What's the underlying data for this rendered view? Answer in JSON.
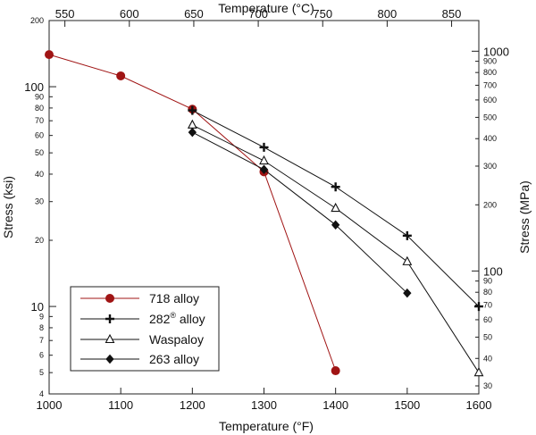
{
  "chart_data": {
    "type": "line",
    "y_scale": "log",
    "axes": {
      "bottom": {
        "label": "Temperature (°F)",
        "range": [
          1000,
          1600
        ],
        "ticks": [
          1000,
          1100,
          1200,
          1300,
          1400,
          1500,
          1600
        ]
      },
      "top": {
        "label": "Temperature (°C)",
        "ticks": [
          550,
          600,
          650,
          700,
          750,
          800,
          850
        ]
      },
      "left": {
        "label": "Stress (ksi)",
        "range": [
          4,
          200
        ],
        "major_ticks": [
          "10",
          "100"
        ],
        "minor_ticks": [
          "4",
          "5",
          "6",
          "7",
          "8",
          "9",
          "20",
          "30",
          "40",
          "50",
          "60",
          "70",
          "80",
          "90",
          "200"
        ]
      },
      "right": {
        "label": "Stress (MPa)",
        "major_ticks": [
          "100",
          "1000"
        ],
        "minor_ticks": [
          "30",
          "40",
          "50",
          "60",
          "70",
          "80",
          "90",
          "200",
          "300",
          "400",
          "500",
          "600",
          "700",
          "800",
          "900"
        ]
      }
    },
    "series": [
      {
        "name": "718 alloy",
        "name_main": "718 alloy",
        "name_sup": "",
        "name_tail": "",
        "marker": "circle",
        "color": "#a01414",
        "x": [
          1000,
          1100,
          1200,
          1300,
          1400
        ],
        "y": [
          140,
          112,
          79,
          41,
          5.1
        ]
      },
      {
        "name": "282® alloy",
        "name_main": "282",
        "name_sup": "®",
        "name_tail": " alloy",
        "marker": "plus",
        "color": "#111111",
        "x": [
          1200,
          1300,
          1400,
          1500,
          1600
        ],
        "y": [
          78,
          53,
          35,
          21,
          10
        ]
      },
      {
        "name": "Waspaloy",
        "name_main": "Waspaloy",
        "name_sup": "",
        "name_tail": "",
        "marker": "triangle",
        "color": "#111111",
        "x": [
          1200,
          1300,
          1400,
          1500,
          1600
        ],
        "y": [
          67,
          46,
          28,
          16,
          5
        ]
      },
      {
        "name": "263 alloy",
        "name_main": "263 alloy",
        "name_sup": "",
        "name_tail": "",
        "marker": "diamond",
        "color": "#111111",
        "x": [
          1200,
          1300,
          1400,
          1500
        ],
        "y": [
          62,
          42,
          23.5,
          11.5
        ]
      }
    ],
    "legend_position": "bottom-left",
    "grid": false
  }
}
